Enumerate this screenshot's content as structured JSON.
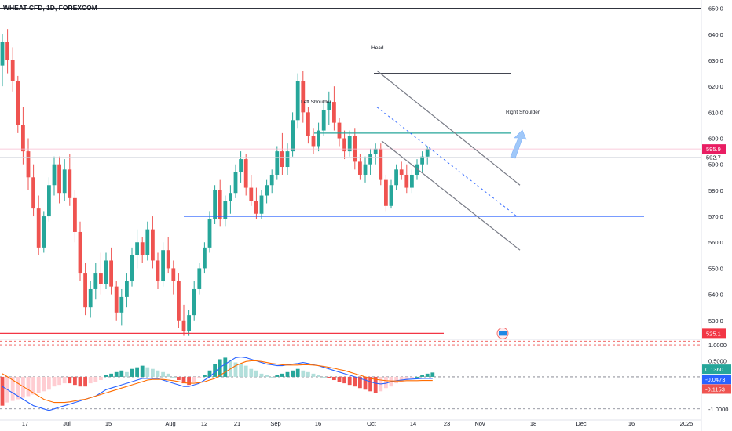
{
  "header": {
    "symbol_label": "WHEAT CFD, 1D, FOREXCOM"
  },
  "colors": {
    "up": "#26a69a",
    "down": "#ef5350",
    "channel": "#787b86",
    "neckline": "#26a69a",
    "support": "#2962ff",
    "low_line": "#f23645",
    "macd_line": "#2962ff",
    "signal_line": "#ff6d00",
    "price_tag": "#e91e63",
    "arrow": "#90bff9"
  },
  "chart_data": [
    {
      "type": "candlestick",
      "title": "",
      "ylim": [
        523,
        652
      ],
      "y_ticks": [
        530,
        540,
        550,
        560,
        570,
        580,
        590,
        600,
        610,
        620,
        630,
        640,
        650
      ],
      "x_tick_labels": [
        "17",
        "Jul",
        "15",
        "Aug",
        "12",
        "21",
        "Sep",
        "16",
        "Oct",
        "14",
        "23",
        "Nov",
        "18",
        "Dec",
        "16",
        "2025"
      ],
      "annotations": {
        "head": "Head",
        "left_shoulder": "Left Shoulder",
        "right_shoulder": "Right Shoulder"
      },
      "price_labels": {
        "last": "595.9",
        "mid": "592.7",
        "low_tag": "525.1"
      },
      "levels": {
        "neckline": 602,
        "support": 570,
        "low_line": 525,
        "head_top": 625
      },
      "candles": [
        {
          "o": 628,
          "h": 640,
          "l": 620,
          "c": 637
        },
        {
          "o": 637,
          "h": 642,
          "l": 625,
          "c": 630
        },
        {
          "o": 630,
          "h": 635,
          "l": 618,
          "c": 622
        },
        {
          "o": 622,
          "h": 624,
          "l": 602,
          "c": 605
        },
        {
          "o": 605,
          "h": 612,
          "l": 590,
          "c": 595
        },
        {
          "o": 595,
          "h": 600,
          "l": 580,
          "c": 585
        },
        {
          "o": 585,
          "h": 590,
          "l": 570,
          "c": 573
        },
        {
          "o": 573,
          "h": 578,
          "l": 555,
          "c": 558
        },
        {
          "o": 558,
          "h": 572,
          "l": 556,
          "c": 570
        },
        {
          "o": 570,
          "h": 585,
          "l": 568,
          "c": 582
        },
        {
          "o": 582,
          "h": 593,
          "l": 578,
          "c": 590
        },
        {
          "o": 590,
          "h": 593,
          "l": 575,
          "c": 579
        },
        {
          "o": 579,
          "h": 592,
          "l": 576,
          "c": 588
        },
        {
          "o": 588,
          "h": 594,
          "l": 574,
          "c": 577
        },
        {
          "o": 577,
          "h": 580,
          "l": 560,
          "c": 564
        },
        {
          "o": 564,
          "h": 568,
          "l": 545,
          "c": 548
        },
        {
          "o": 548,
          "h": 552,
          "l": 532,
          "c": 535
        },
        {
          "o": 535,
          "h": 545,
          "l": 531,
          "c": 542
        },
        {
          "o": 542,
          "h": 552,
          "l": 538,
          "c": 548
        },
        {
          "o": 548,
          "h": 556,
          "l": 540,
          "c": 544
        },
        {
          "o": 544,
          "h": 556,
          "l": 542,
          "c": 553
        },
        {
          "o": 553,
          "h": 558,
          "l": 540,
          "c": 543
        },
        {
          "o": 543,
          "h": 545,
          "l": 530,
          "c": 533
        },
        {
          "o": 533,
          "h": 542,
          "l": 528,
          "c": 539
        },
        {
          "o": 539,
          "h": 548,
          "l": 535,
          "c": 545
        },
        {
          "o": 545,
          "h": 558,
          "l": 543,
          "c": 555
        },
        {
          "o": 555,
          "h": 565,
          "l": 550,
          "c": 560
        },
        {
          "o": 560,
          "h": 562,
          "l": 552,
          "c": 555
        },
        {
          "o": 555,
          "h": 568,
          "l": 553,
          "c": 565
        },
        {
          "o": 565,
          "h": 570,
          "l": 550,
          "c": 553
        },
        {
          "o": 553,
          "h": 556,
          "l": 542,
          "c": 545
        },
        {
          "o": 545,
          "h": 560,
          "l": 543,
          "c": 557
        },
        {
          "o": 557,
          "h": 562,
          "l": 548,
          "c": 550
        },
        {
          "o": 550,
          "h": 553,
          "l": 540,
          "c": 545
        },
        {
          "o": 545,
          "h": 548,
          "l": 527,
          "c": 530
        },
        {
          "o": 530,
          "h": 536,
          "l": 524,
          "c": 526
        },
        {
          "o": 526,
          "h": 534,
          "l": 524,
          "c": 532
        },
        {
          "o": 532,
          "h": 545,
          "l": 530,
          "c": 542
        },
        {
          "o": 542,
          "h": 552,
          "l": 540,
          "c": 550
        },
        {
          "o": 550,
          "h": 560,
          "l": 548,
          "c": 558
        },
        {
          "o": 558,
          "h": 572,
          "l": 556,
          "c": 569
        },
        {
          "o": 569,
          "h": 582,
          "l": 567,
          "c": 580
        },
        {
          "o": 580,
          "h": 584,
          "l": 566,
          "c": 569
        },
        {
          "o": 569,
          "h": 578,
          "l": 566,
          "c": 576
        },
        {
          "o": 576,
          "h": 582,
          "l": 571,
          "c": 579
        },
        {
          "o": 579,
          "h": 590,
          "l": 577,
          "c": 587
        },
        {
          "o": 587,
          "h": 595,
          "l": 583,
          "c": 592
        },
        {
          "o": 592,
          "h": 594,
          "l": 578,
          "c": 581
        },
        {
          "o": 581,
          "h": 586,
          "l": 574,
          "c": 576
        },
        {
          "o": 576,
          "h": 581,
          "l": 569,
          "c": 571
        },
        {
          "o": 571,
          "h": 580,
          "l": 569,
          "c": 578
        },
        {
          "o": 578,
          "h": 584,
          "l": 575,
          "c": 582
        },
        {
          "o": 582,
          "h": 588,
          "l": 579,
          "c": 586
        },
        {
          "o": 586,
          "h": 597,
          "l": 584,
          "c": 595
        },
        {
          "o": 595,
          "h": 602,
          "l": 586,
          "c": 589
        },
        {
          "o": 589,
          "h": 598,
          "l": 586,
          "c": 595
        },
        {
          "o": 595,
          "h": 610,
          "l": 593,
          "c": 607
        },
        {
          "o": 607,
          "h": 625,
          "l": 604,
          "c": 622
        },
        {
          "o": 622,
          "h": 626,
          "l": 606,
          "c": 610
        },
        {
          "o": 610,
          "h": 612,
          "l": 598,
          "c": 601
        },
        {
          "o": 601,
          "h": 604,
          "l": 594,
          "c": 597
        },
        {
          "o": 597,
          "h": 606,
          "l": 595,
          "c": 603
        },
        {
          "o": 603,
          "h": 614,
          "l": 601,
          "c": 611
        },
        {
          "o": 611,
          "h": 618,
          "l": 605,
          "c": 614
        },
        {
          "o": 614,
          "h": 620,
          "l": 603,
          "c": 606
        },
        {
          "o": 606,
          "h": 608,
          "l": 597,
          "c": 600
        },
        {
          "o": 600,
          "h": 603,
          "l": 592,
          "c": 595
        },
        {
          "o": 595,
          "h": 603,
          "l": 593,
          "c": 601
        },
        {
          "o": 601,
          "h": 604,
          "l": 588,
          "c": 591
        },
        {
          "o": 591,
          "h": 594,
          "l": 584,
          "c": 586
        },
        {
          "o": 586,
          "h": 593,
          "l": 583,
          "c": 590
        },
        {
          "o": 590,
          "h": 596,
          "l": 586,
          "c": 594
        },
        {
          "o": 594,
          "h": 598,
          "l": 590,
          "c": 596
        },
        {
          "o": 596,
          "h": 598,
          "l": 582,
          "c": 584
        },
        {
          "o": 584,
          "h": 586,
          "l": 572,
          "c": 574
        },
        {
          "o": 574,
          "h": 584,
          "l": 573,
          "c": 582
        },
        {
          "o": 582,
          "h": 590,
          "l": 580,
          "c": 588
        },
        {
          "o": 588,
          "h": 591,
          "l": 584,
          "c": 586
        },
        {
          "o": 586,
          "h": 590,
          "l": 579,
          "c": 581
        },
        {
          "o": 581,
          "h": 588,
          "l": 579,
          "c": 586
        },
        {
          "o": 586,
          "h": 592,
          "l": 584,
          "c": 590
        },
        {
          "o": 590,
          "h": 595,
          "l": 587,
          "c": 593
        },
        {
          "o": 593,
          "h": 597,
          "l": 590,
          "c": 595.9
        }
      ]
    },
    {
      "type": "bar",
      "title": "MACD",
      "ylim": [
        -1.25,
        1.1
      ],
      "y_ticks": [
        1.0,
        0.5,
        -1.0
      ],
      "y_tick_labels": [
        "1.0000",
        "0.5000",
        "-1.0000"
      ],
      "value_labels": {
        "histogram": "0.1360",
        "macd": "-0.0473",
        "signal": "-0.1153"
      },
      "histogram": [
        -0.9,
        -0.8,
        -0.75,
        -0.7,
        -0.65,
        -0.6,
        -0.55,
        -0.5,
        -0.45,
        -0.4,
        -0.3,
        -0.25,
        -0.2,
        -0.2,
        -0.25,
        -0.3,
        -0.3,
        -0.2,
        -0.15,
        -0.1,
        0.05,
        0.1,
        0.15,
        0.2,
        0.15,
        0.25,
        0.3,
        0.35,
        0.3,
        0.25,
        0.2,
        0.15,
        0.1,
        0.0,
        -0.1,
        -0.2,
        -0.25,
        -0.15,
        -0.05,
        0.05,
        0.2,
        0.4,
        0.55,
        0.6,
        0.5,
        0.45,
        0.4,
        0.35,
        0.25,
        0.2,
        0.1,
        0.05,
        0.0,
        0.05,
        0.1,
        0.15,
        0.2,
        0.25,
        0.2,
        0.15,
        0.1,
        0.05,
        0.0,
        -0.05,
        -0.1,
        -0.15,
        -0.2,
        -0.25,
        -0.3,
        -0.35,
        -0.4,
        -0.45,
        -0.5,
        -0.45,
        -0.35,
        -0.3,
        -0.2,
        -0.15,
        -0.1,
        -0.05,
        0.0,
        0.05,
        0.1,
        0.136
      ],
      "macd": [
        -0.3,
        -0.4,
        -0.5,
        -0.6,
        -0.7,
        -0.8,
        -0.9,
        -0.95,
        -1.0,
        -1.05,
        -1.0,
        -0.95,
        -0.9,
        -0.85,
        -0.8,
        -0.75,
        -0.7,
        -0.65,
        -0.6,
        -0.5,
        -0.4,
        -0.35,
        -0.3,
        -0.25,
        -0.2,
        -0.15,
        -0.1,
        -0.05,
        -0.05,
        -0.05,
        -0.05,
        -0.1,
        -0.15,
        -0.2,
        -0.25,
        -0.3,
        -0.3,
        -0.25,
        -0.2,
        -0.1,
        0.0,
        0.15,
        0.3,
        0.4,
        0.5,
        0.6,
        0.62,
        0.6,
        0.55,
        0.5,
        0.45,
        0.4,
        0.38,
        0.35,
        0.35,
        0.38,
        0.4,
        0.42,
        0.45,
        0.42,
        0.38,
        0.35,
        0.3,
        0.25,
        0.2,
        0.15,
        0.1,
        0.05,
        0.0,
        -0.05,
        -0.1,
        -0.15,
        -0.2,
        -0.22,
        -0.2,
        -0.15,
        -0.12,
        -0.1,
        -0.08,
        -0.07,
        -0.06,
        -0.05,
        -0.05,
        -0.0473
      ],
      "signal": [
        0.1,
        0.0,
        -0.1,
        -0.2,
        -0.3,
        -0.4,
        -0.5,
        -0.6,
        -0.7,
        -0.75,
        -0.8,
        -0.8,
        -0.8,
        -0.78,
        -0.75,
        -0.72,
        -0.7,
        -0.65,
        -0.6,
        -0.55,
        -0.5,
        -0.45,
        -0.4,
        -0.35,
        -0.3,
        -0.25,
        -0.2,
        -0.15,
        -0.1,
        -0.08,
        -0.08,
        -0.08,
        -0.1,
        -0.12,
        -0.15,
        -0.18,
        -0.2,
        -0.2,
        -0.18,
        -0.15,
        -0.1,
        -0.05,
        0.05,
        0.15,
        0.25,
        0.35,
        0.42,
        0.48,
        0.5,
        0.5,
        0.48,
        0.45,
        0.42,
        0.4,
        0.38,
        0.37,
        0.37,
        0.37,
        0.38,
        0.38,
        0.37,
        0.35,
        0.33,
        0.3,
        0.27,
        0.23,
        0.2,
        0.15,
        0.1,
        0.05,
        0.0,
        -0.05,
        -0.08,
        -0.1,
        -0.12,
        -0.13,
        -0.13,
        -0.13,
        -0.12,
        -0.12,
        -0.12,
        -0.115,
        -0.115,
        -0.1153
      ]
    }
  ]
}
